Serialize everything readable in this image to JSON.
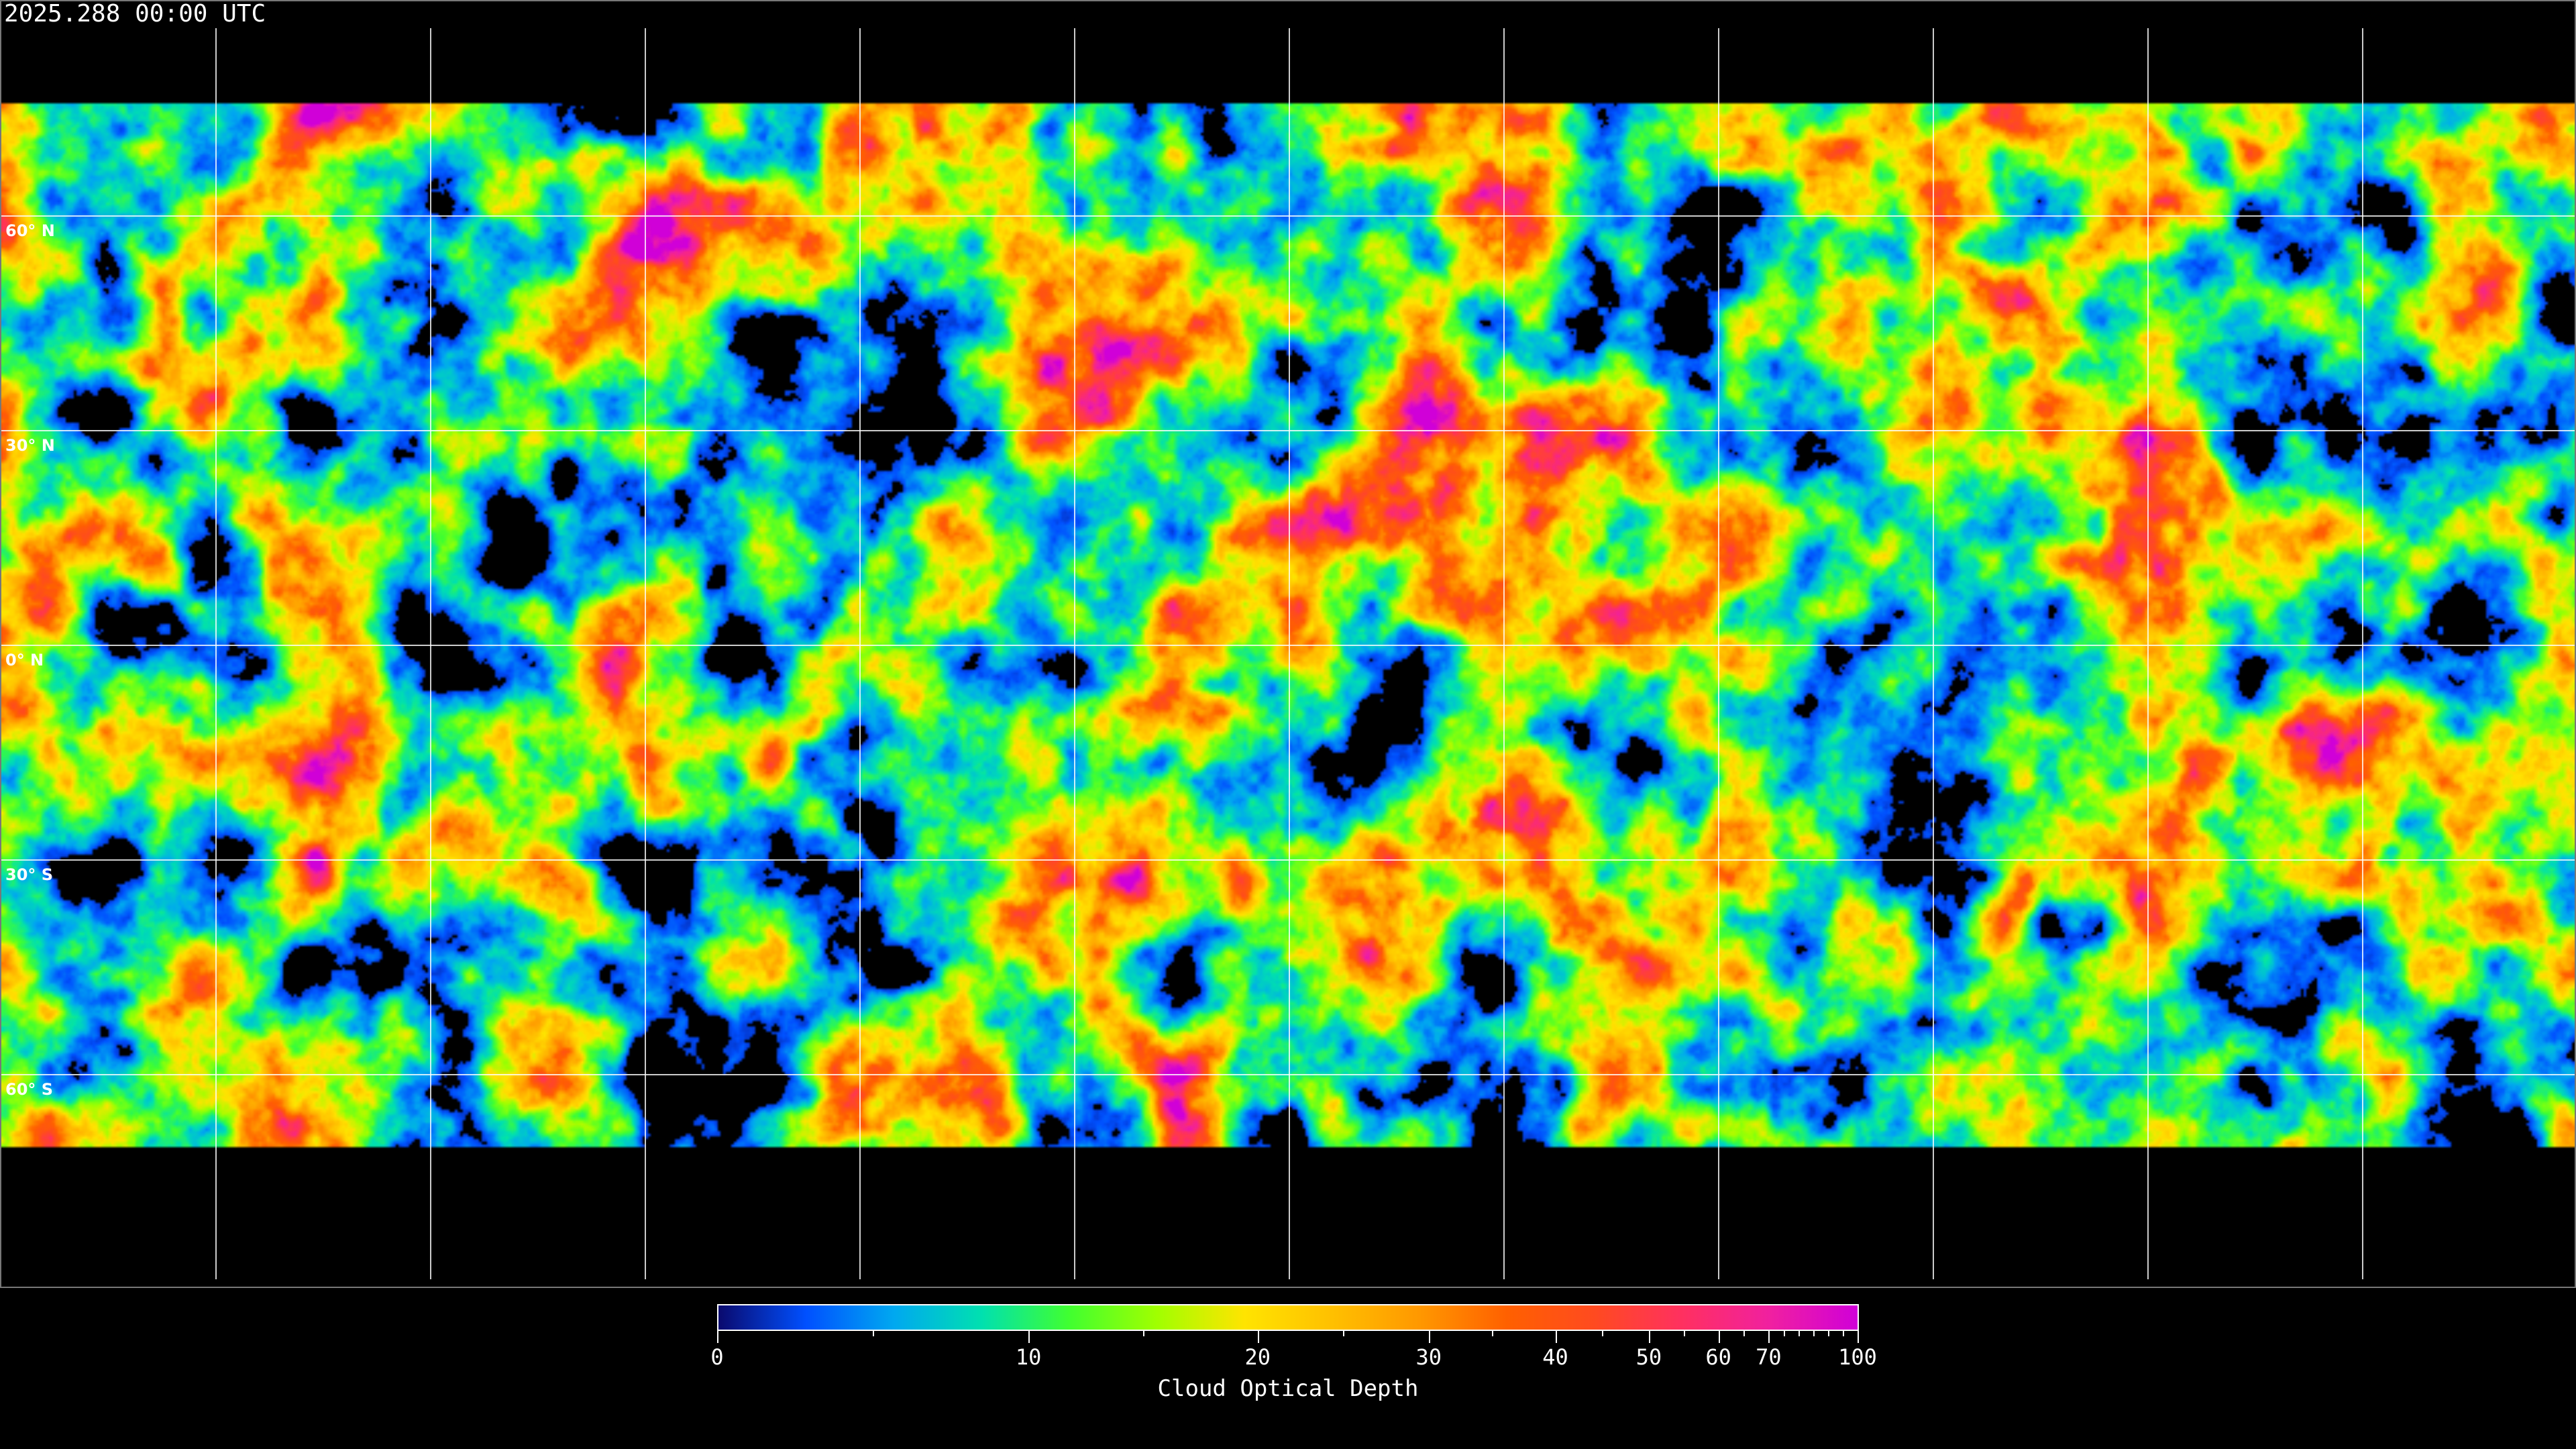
{
  "title": "2025.288 00:00 UTC",
  "map": {
    "projection": "equirectangular",
    "grid_spacing_deg": 30,
    "latitude_labels": [
      "60° N",
      "30° N",
      "0° N",
      "30° S",
      "60° S"
    ],
    "latitude_values": [
      60,
      30,
      0,
      -30,
      -60
    ],
    "longitude_lines": [
      -150,
      -120,
      -90,
      -60,
      -30,
      0,
      30,
      60,
      90,
      120,
      150
    ],
    "coastlines_color": "#ffffff",
    "gridline_color": "#ffffff",
    "no_data_color": "#000000"
  },
  "colorbar": {
    "label": "Cloud Optical Depth",
    "range": [
      0,
      100
    ],
    "major_ticks": [
      {
        "value": 0,
        "label": "0"
      },
      {
        "value": 10,
        "label": "10"
      },
      {
        "value": 20,
        "label": "20"
      },
      {
        "value": 30,
        "label": "30"
      },
      {
        "value": 40,
        "label": "40"
      },
      {
        "value": 50,
        "label": "50"
      },
      {
        "value": 60,
        "label": "60"
      },
      {
        "value": 70,
        "label": "70"
      },
      {
        "value": 100,
        "label": "100"
      }
    ],
    "minor_ticks": [
      5,
      15,
      25,
      35,
      45,
      55,
      65,
      75,
      80,
      85,
      90,
      95
    ],
    "colors": [
      "#0a0a6e",
      "#0050ff",
      "#00a8f0",
      "#00e0b0",
      "#40ff30",
      "#a0ff00",
      "#ffe400",
      "#ffc000",
      "#ff9800",
      "#ff6000",
      "#ff4a20",
      "#ff3060",
      "#f020a0",
      "#d000d8"
    ]
  }
}
